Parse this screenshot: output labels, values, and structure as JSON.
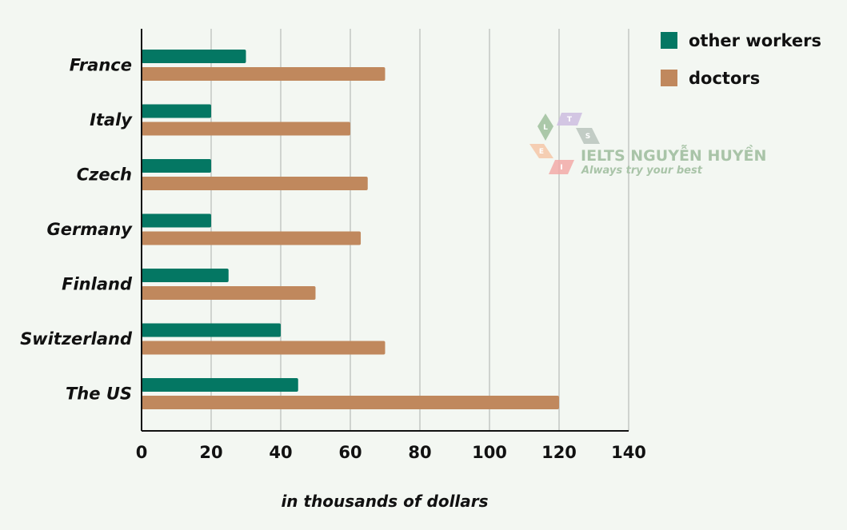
{
  "chart_data": {
    "type": "bar",
    "orientation": "horizontal",
    "categories": [
      "France",
      "Italy",
      "Czech",
      "Germany",
      "Finland",
      "Switzerland",
      "The US"
    ],
    "series": [
      {
        "name": "other workers",
        "color": "#047763",
        "values": [
          30,
          20,
          20,
          20,
          25,
          40,
          45
        ]
      },
      {
        "name": "doctors",
        "color": "#c0885d",
        "values": [
          70,
          60,
          65,
          63,
          50,
          70,
          120
        ]
      }
    ],
    "xlabel": "in thousands of dollars",
    "ylabel": "",
    "xlim": [
      0,
      140
    ],
    "xticks": [
      "0",
      "20",
      "40",
      "60",
      "80",
      "100",
      "120",
      "140"
    ],
    "grid": "vertical",
    "legend_position": "top-right"
  },
  "watermark": {
    "title": "IELTS NGUYỄN HUYỀN",
    "subtitle": "Always try your best",
    "letters": [
      "L",
      "T",
      "S",
      "E",
      "I"
    ]
  }
}
